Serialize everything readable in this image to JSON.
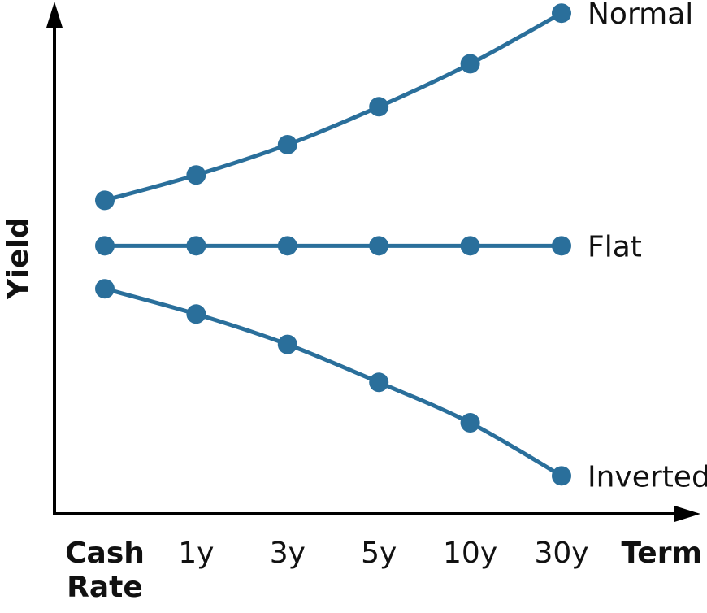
{
  "chart_data": {
    "type": "line",
    "title": "",
    "xlabel": "Term",
    "ylabel": "Yield",
    "categories": [
      "Cash Rate",
      "1y",
      "3y",
      "5y",
      "10y",
      "30y"
    ],
    "category_lines": [
      [
        "Cash"
      ],
      [
        "Rate"
      ]
    ],
    "ylim": [
      0,
      100
    ],
    "grid": false,
    "legend": "none",
    "series": [
      {
        "name": "Normal",
        "values": [
          62,
          67,
          73,
          80.5,
          89,
          99
        ]
      },
      {
        "name": "Flat",
        "values": [
          53,
          53,
          53,
          53,
          53,
          53
        ]
      },
      {
        "name": "Inverted",
        "values": [
          44.5,
          39.5,
          33.5,
          26,
          18,
          7.5
        ]
      }
    ],
    "colors": {
      "series": "#2a6f9b",
      "axis": "#000000"
    }
  }
}
